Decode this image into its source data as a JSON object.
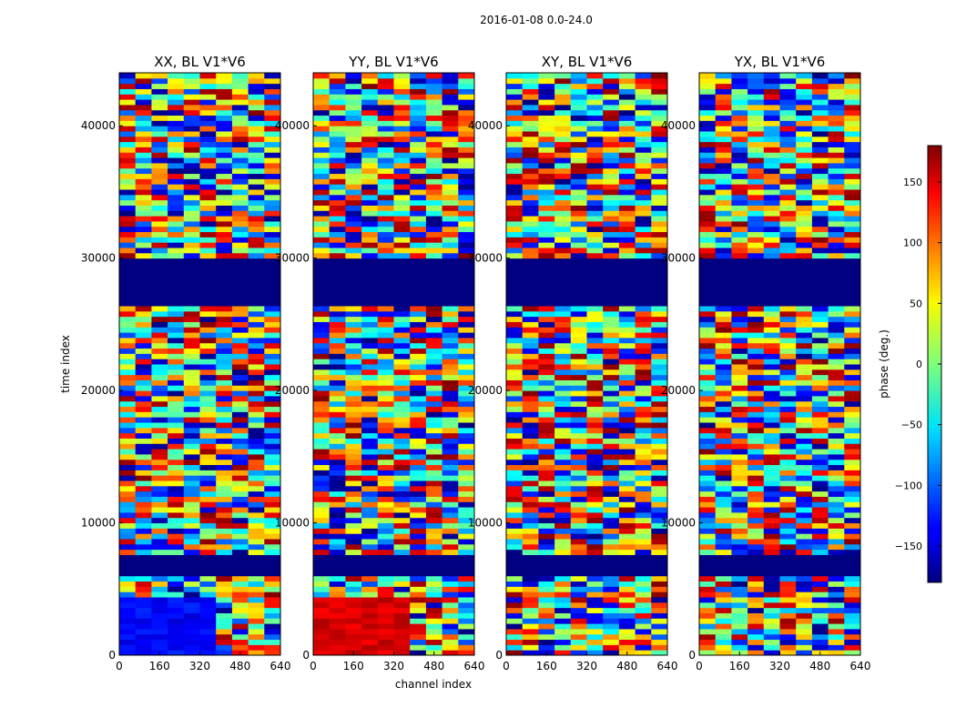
{
  "figure_title": "2016-01-08 0.0-24.0",
  "chart_data": {
    "type": "heatmap",
    "title": "2016-01-08 0.0-24.0",
    "xlabel": "channel index",
    "ylabel": "time index",
    "xlim": [
      0,
      640
    ],
    "ylim": [
      0,
      44000
    ],
    "x_ticks": [
      0,
      160,
      320,
      480,
      640
    ],
    "y_ticks": [
      0,
      10000,
      20000,
      30000,
      40000
    ],
    "colorbar": {
      "label": "phase (deg.)",
      "range": [
        -180,
        180
      ],
      "ticks": [
        -150,
        -100,
        -50,
        0,
        50,
        100,
        150
      ],
      "colormap": "jet"
    },
    "panels": [
      {
        "title": "XX, BL V1*V6",
        "base_phase": -135
      },
      {
        "title": "YY, BL V1*V6",
        "base_phase": 150
      },
      {
        "title": "XY, BL V1*V6",
        "base_phase": 0
      },
      {
        "title": "YX, BL V1*V6",
        "base_phase": 0
      }
    ],
    "flagged_time_ranges": [
      [
        26500,
        30000
      ],
      [
        6000,
        7300
      ]
    ],
    "flagged_phase": -180
  }
}
